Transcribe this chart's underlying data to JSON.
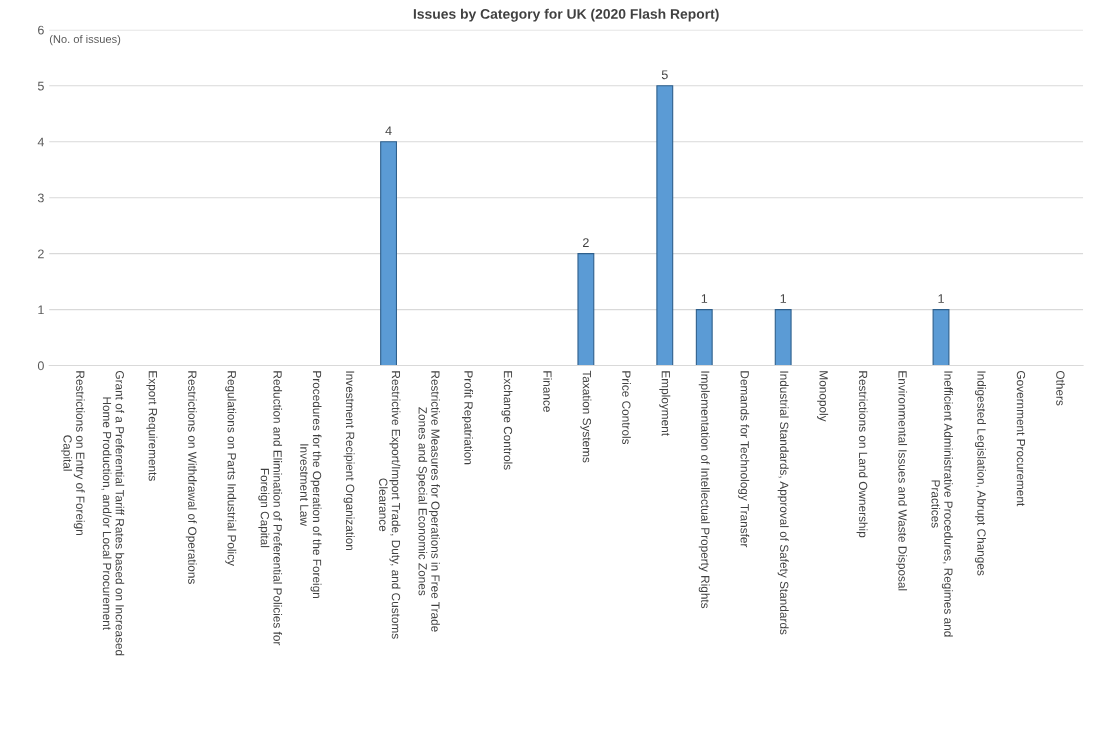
{
  "chart_data": {
    "type": "bar",
    "title": "Issues by Category for UK (2020 Flash Report)",
    "ylabel": "(No. of issues)",
    "categories": [
      "Restrictions on Entry of Foreign\nCapital",
      "Grant of a Preferential Tariff Rates based on Increased\nHome Production, and/or Local Procurement",
      "Export Requirements",
      "Restrictions on Withdrawal of Operations",
      "Regulations on Parts Industrial Policy",
      "Reduction and Elimination of Preferential Policies for\nForeign Capital",
      "Procedures for the Operation of the Foreign\nInvestment Law",
      "Investment Recipient Organization",
      "Restrictive Export/Import Trade, Duty, and Customs\nClearance",
      "Restrictive Measures for Operations in Free Trade\nZones and Special Economic Zones",
      "Profit Repatriation",
      "Exchange Controls",
      "Finance",
      "Taxation Systems",
      "Price Controls",
      "Employment",
      "Implementation of Intellectual Property Rights",
      "Demands for Technology Transfer",
      "Industrial Standards, Approval of Safety Standards",
      "Monopoly",
      "Restrictions on Land Ownership",
      "Environmental Issues and Waste Disposal",
      "Inefficient Administrative Procedures, Regimes and\nPractices",
      "Indigested Legislation, Abrupt Changes",
      "Government Procurement",
      "Others"
    ],
    "values": [
      0,
      0,
      0,
      0,
      0,
      0,
      0,
      0,
      4,
      0,
      0,
      0,
      0,
      2,
      0,
      5,
      1,
      0,
      1,
      0,
      0,
      0,
      1,
      0,
      0,
      0
    ],
    "value_labels": [
      null,
      null,
      null,
      null,
      null,
      null,
      null,
      null,
      "4",
      null,
      null,
      null,
      null,
      "2",
      null,
      "5",
      "1",
      null,
      "1",
      null,
      null,
      null,
      "1",
      null,
      null,
      null
    ],
    "color": "#5b9bd5",
    "ylim": [
      0,
      6
    ],
    "yticks": [
      0,
      1,
      2,
      3,
      4,
      5,
      6
    ],
    "grid": "y",
    "legend": false
  }
}
